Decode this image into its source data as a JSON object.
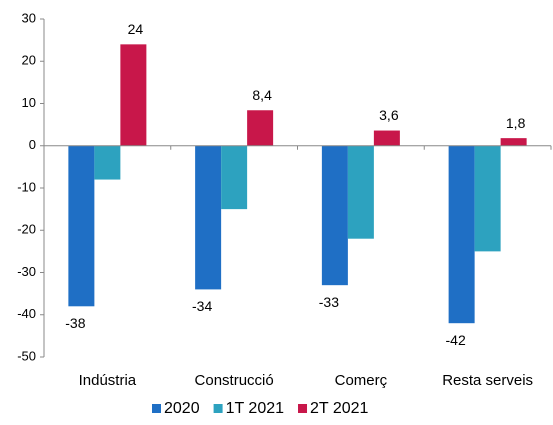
{
  "chart_data": {
    "type": "bar",
    "categories": [
      "Indústria",
      "Construcció",
      "Comerç",
      "Resta serveis"
    ],
    "series": [
      {
        "name": "2020",
        "color": "#1f6fc5",
        "values": [
          -38,
          -34,
          -33,
          -42
        ],
        "data_labels": true
      },
      {
        "name": "1T 2021",
        "color": "#2da2bf",
        "values": [
          -8,
          -15,
          -22,
          -25
        ]
      },
      {
        "name": "2T 2021",
        "color": "#c8174a",
        "values": [
          24,
          8.4,
          3.6,
          1.8
        ],
        "value_labels": [
          "24",
          "8,4",
          "3,6",
          "1,8"
        ],
        "data_labels": true
      }
    ],
    "ylim": [
      -50,
      30
    ],
    "yticks": [
      -50,
      -40,
      -30,
      -20,
      -10,
      0,
      10,
      20,
      30
    ],
    "grid": false,
    "legend": "bottom"
  }
}
